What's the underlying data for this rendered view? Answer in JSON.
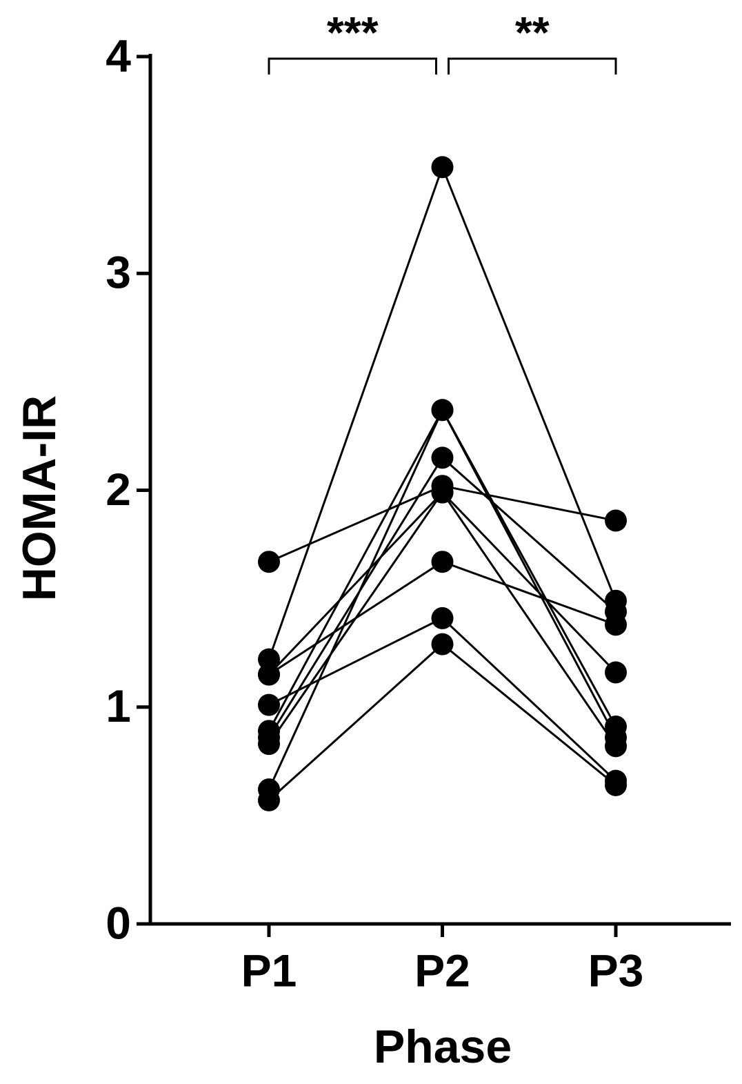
{
  "chart_data": {
    "type": "paired-line",
    "xlabel": "Phase",
    "ylabel": "HOMA-IR",
    "categories": [
      "P1",
      "P2",
      "P3"
    ],
    "ylim": [
      0,
      4
    ],
    "yticks": [
      0,
      1,
      2,
      3,
      4
    ],
    "color": "#000000",
    "annotations": [
      "***",
      "**"
    ],
    "series": [
      {
        "values": [
          1.22,
          3.49,
          1.49
        ]
      },
      {
        "values": [
          1.67,
          2.02,
          1.86
        ]
      },
      {
        "values": [
          0.89,
          2.37,
          0.91
        ]
      },
      {
        "values": [
          0.62,
          2.37,
          0.86
        ]
      },
      {
        "values": [
          0.86,
          2.15,
          1.44
        ]
      },
      {
        "values": [
          0.83,
          1.99,
          1.16
        ]
      },
      {
        "values": [
          1.15,
          1.99,
          0.82
        ]
      },
      {
        "values": [
          1.01,
          1.41,
          0.66
        ]
      },
      {
        "values": [
          0.57,
          1.29,
          0.64
        ]
      },
      {
        "values": [
          1.15,
          1.67,
          1.38
        ]
      }
    ]
  }
}
